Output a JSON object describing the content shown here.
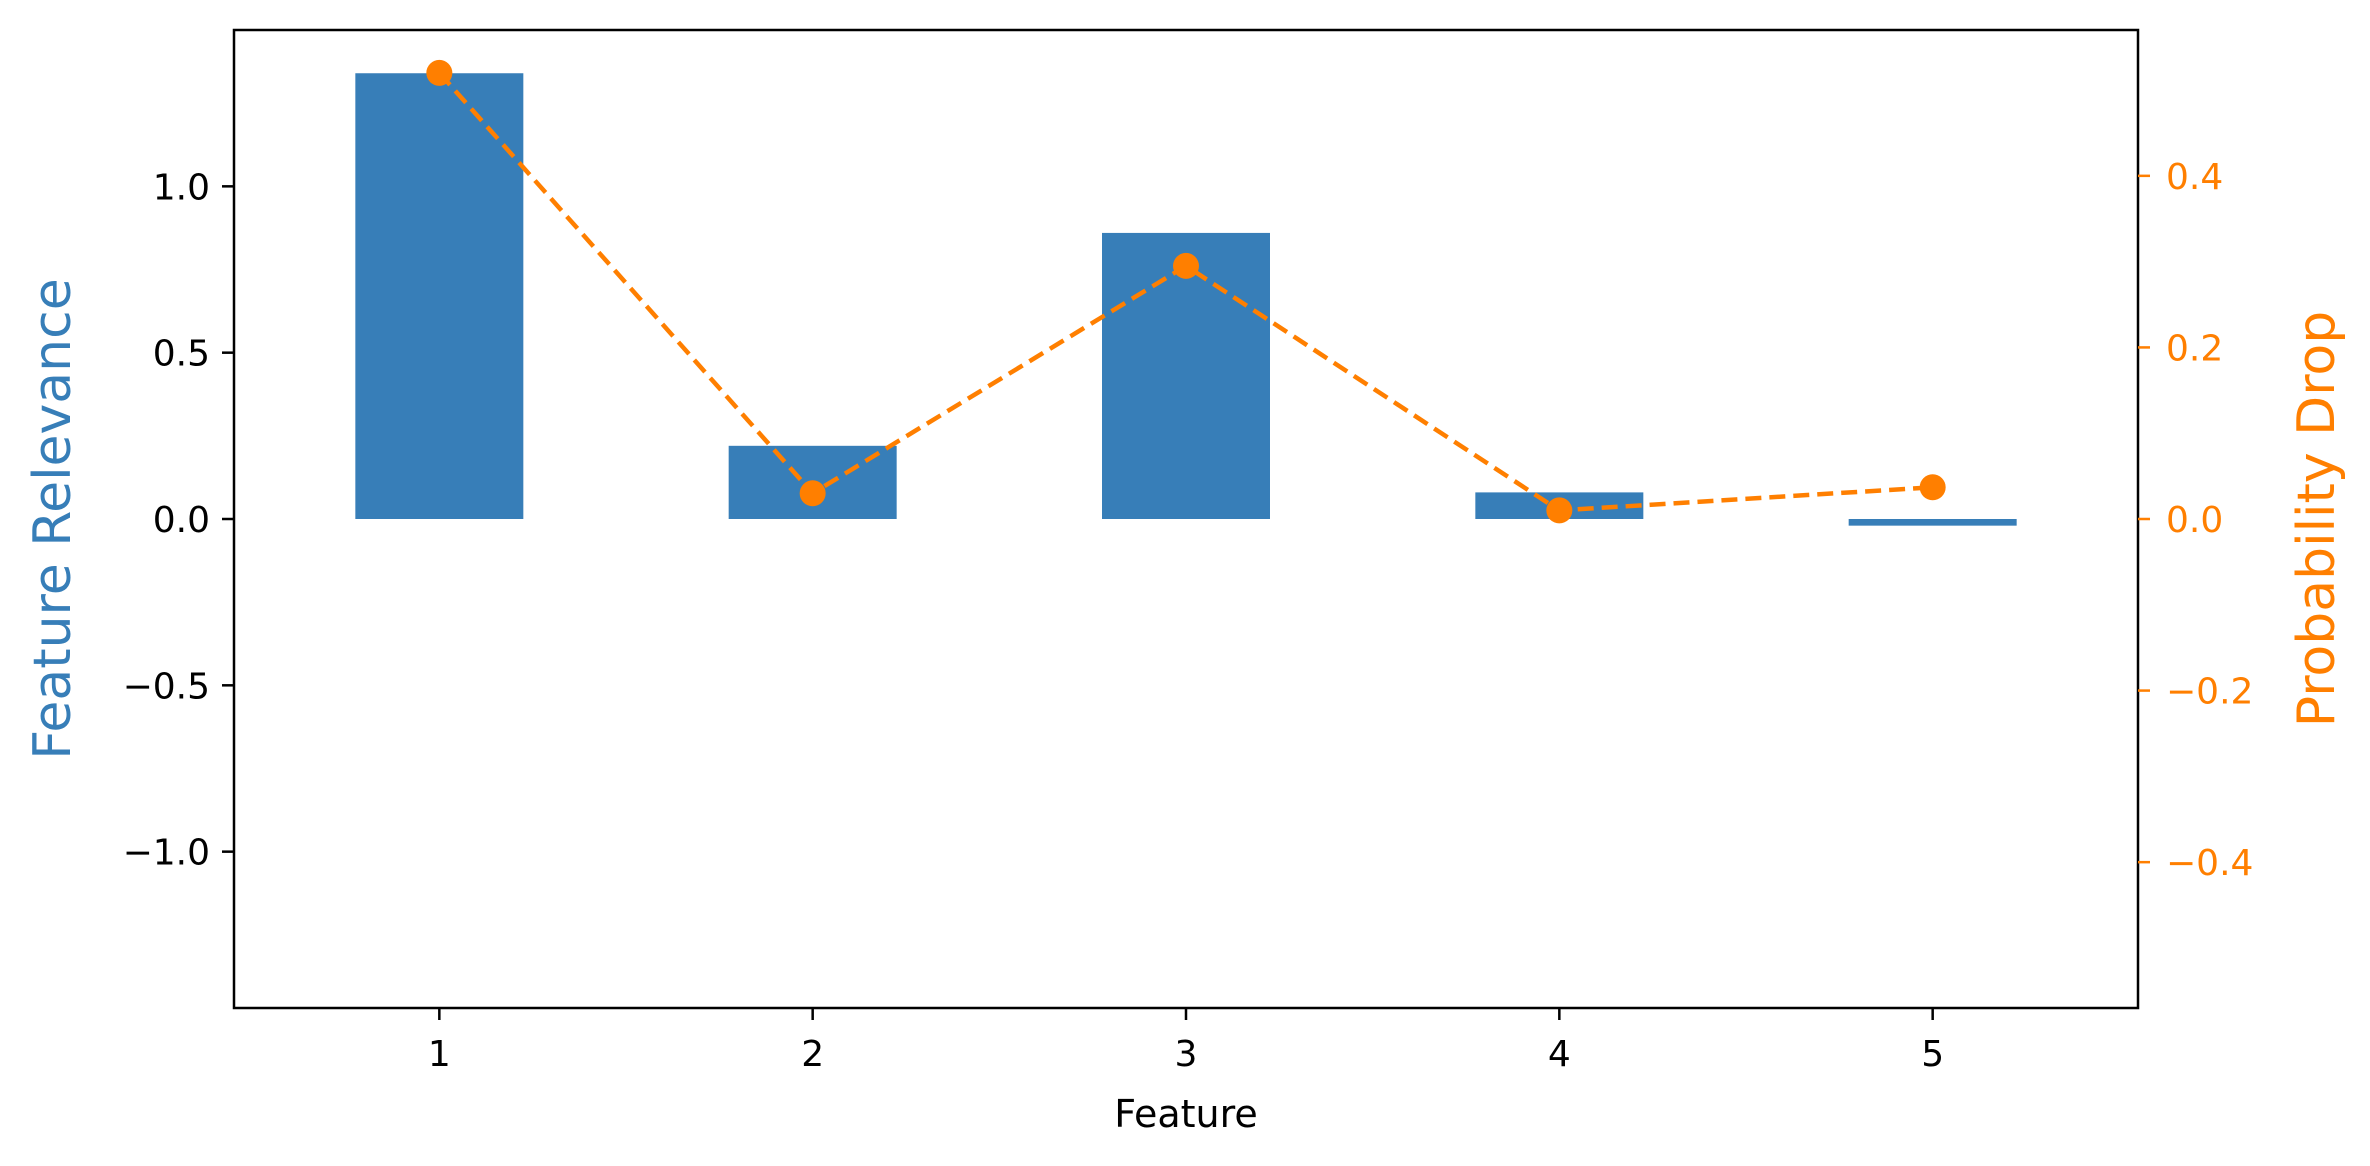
{
  "chart_data": {
    "type": "bar",
    "categories": [
      "1",
      "2",
      "3",
      "4",
      "5"
    ],
    "x": [
      1,
      2,
      3,
      4,
      5
    ],
    "xlabel": "Feature",
    "ylabel": "Feature Relevance",
    "y2label": "Probability Drop",
    "ylim": [
      -1.47,
      1.47
    ],
    "y2lim": [
      -0.57,
      0.57
    ],
    "yticks": [
      -1.0,
      -0.5,
      0.0,
      0.5,
      1.0
    ],
    "y2ticks": [
      -0.4,
      -0.2,
      0.0,
      0.2,
      0.4
    ],
    "grid": false,
    "series": [
      {
        "type": "bar",
        "axis": "left",
        "values": [
          1.34,
          0.22,
          0.86,
          0.08,
          -0.02
        ],
        "color": "#377eb8"
      },
      {
        "type": "line",
        "axis": "right",
        "linestyle": "dashed",
        "marker": "circle",
        "values": [
          0.52,
          0.03,
          0.295,
          0.01,
          0.037
        ],
        "color": "#ff7f00"
      }
    ]
  }
}
